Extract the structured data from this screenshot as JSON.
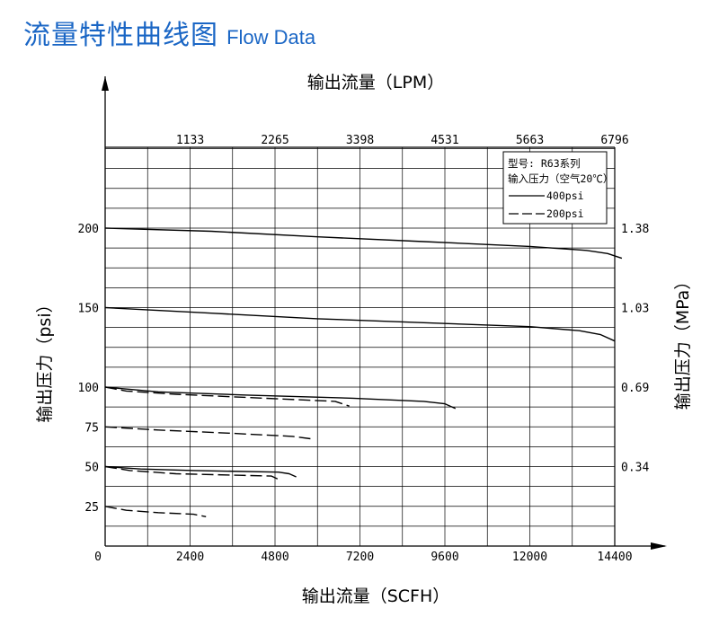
{
  "header": {
    "title_cn": "流量特性曲线图",
    "title_en": "Flow Data"
  },
  "chart_data": {
    "type": "line",
    "x_title_bottom": "输出流量（SCFH）",
    "x_title_top": "输出流量（LPM）",
    "y_title_left": "输出压力（psi）",
    "y_title_right": "输出压力（MPa）",
    "xlim": [
      0,
      14400
    ],
    "ylim": [
      0,
      200
    ],
    "x_ticks_bottom": [
      "0",
      "2400",
      "4800",
      "7200",
      "9600",
      "12000",
      "14400"
    ],
    "x_tick_values_bottom": [
      0,
      2400,
      4800,
      7200,
      9600,
      12000,
      14400
    ],
    "x_ticks_top": [
      "1133",
      "2265",
      "3398",
      "4531",
      "5663",
      "6796"
    ],
    "x_tick_values_top": [
      2400,
      4800,
      7200,
      9600,
      12000,
      14400
    ],
    "y_ticks_left": [
      "25",
      "50",
      "75",
      "100",
      "150",
      "200"
    ],
    "y_tick_values_left": [
      25,
      50,
      75,
      100,
      150,
      200
    ],
    "y_ticks_right": [
      "0.34",
      "0.69",
      "1.03",
      "1.38"
    ],
    "y_tick_values_right": [
      50,
      100,
      150,
      200
    ],
    "grid": true,
    "legend": {
      "placement": "top-right",
      "model": "型号: R63系列",
      "input_label": "输入压力（空气20℃）",
      "entries": [
        {
          "label": "400psi",
          "style": "solid"
        },
        {
          "label": "200psi",
          "style": "dashed"
        }
      ]
    },
    "series": [
      {
        "style": "solid",
        "x": [
          0,
          3000,
          6000,
          9000,
          12000,
          13600,
          14200,
          14600
        ],
        "y": [
          200,
          198,
          194.5,
          191.5,
          188.5,
          186,
          184,
          181
        ]
      },
      {
        "style": "solid",
        "x": [
          0,
          3000,
          6000,
          9000,
          12000,
          13400,
          14000,
          14400
        ],
        "y": [
          150,
          146.5,
          143,
          140.5,
          138,
          135.5,
          133,
          129
        ]
      },
      {
        "style": "solid",
        "x": [
          0,
          1500,
          4000,
          7000,
          9000,
          9600,
          9900
        ],
        "y": [
          100,
          97,
          95,
          93,
          91,
          89.5,
          86.5
        ]
      },
      {
        "style": "dashed",
        "x": [
          0,
          600,
          2000,
          4500,
          6500,
          6900
        ],
        "y": [
          100,
          97.5,
          95.5,
          93,
          91,
          88
        ]
      },
      {
        "style": "dashed",
        "x": [
          0,
          1500,
          3500,
          5300,
          5800
        ],
        "y": [
          75,
          73,
          71,
          69,
          67.5
        ]
      },
      {
        "style": "solid",
        "x": [
          0,
          1000,
          2500,
          4900,
          5200,
          5400
        ],
        "y": [
          50,
          48.5,
          47.5,
          46.5,
          45.5,
          43.5
        ]
      },
      {
        "style": "dashed",
        "x": [
          0,
          700,
          2000,
          3800,
          4700,
          4900
        ],
        "y": [
          50,
          47.5,
          45.5,
          44.5,
          44,
          42
        ]
      },
      {
        "style": "dashed",
        "x": [
          0,
          600,
          1500,
          2500,
          2850
        ],
        "y": [
          25,
          22.5,
          21,
          20,
          18.5
        ]
      }
    ]
  }
}
